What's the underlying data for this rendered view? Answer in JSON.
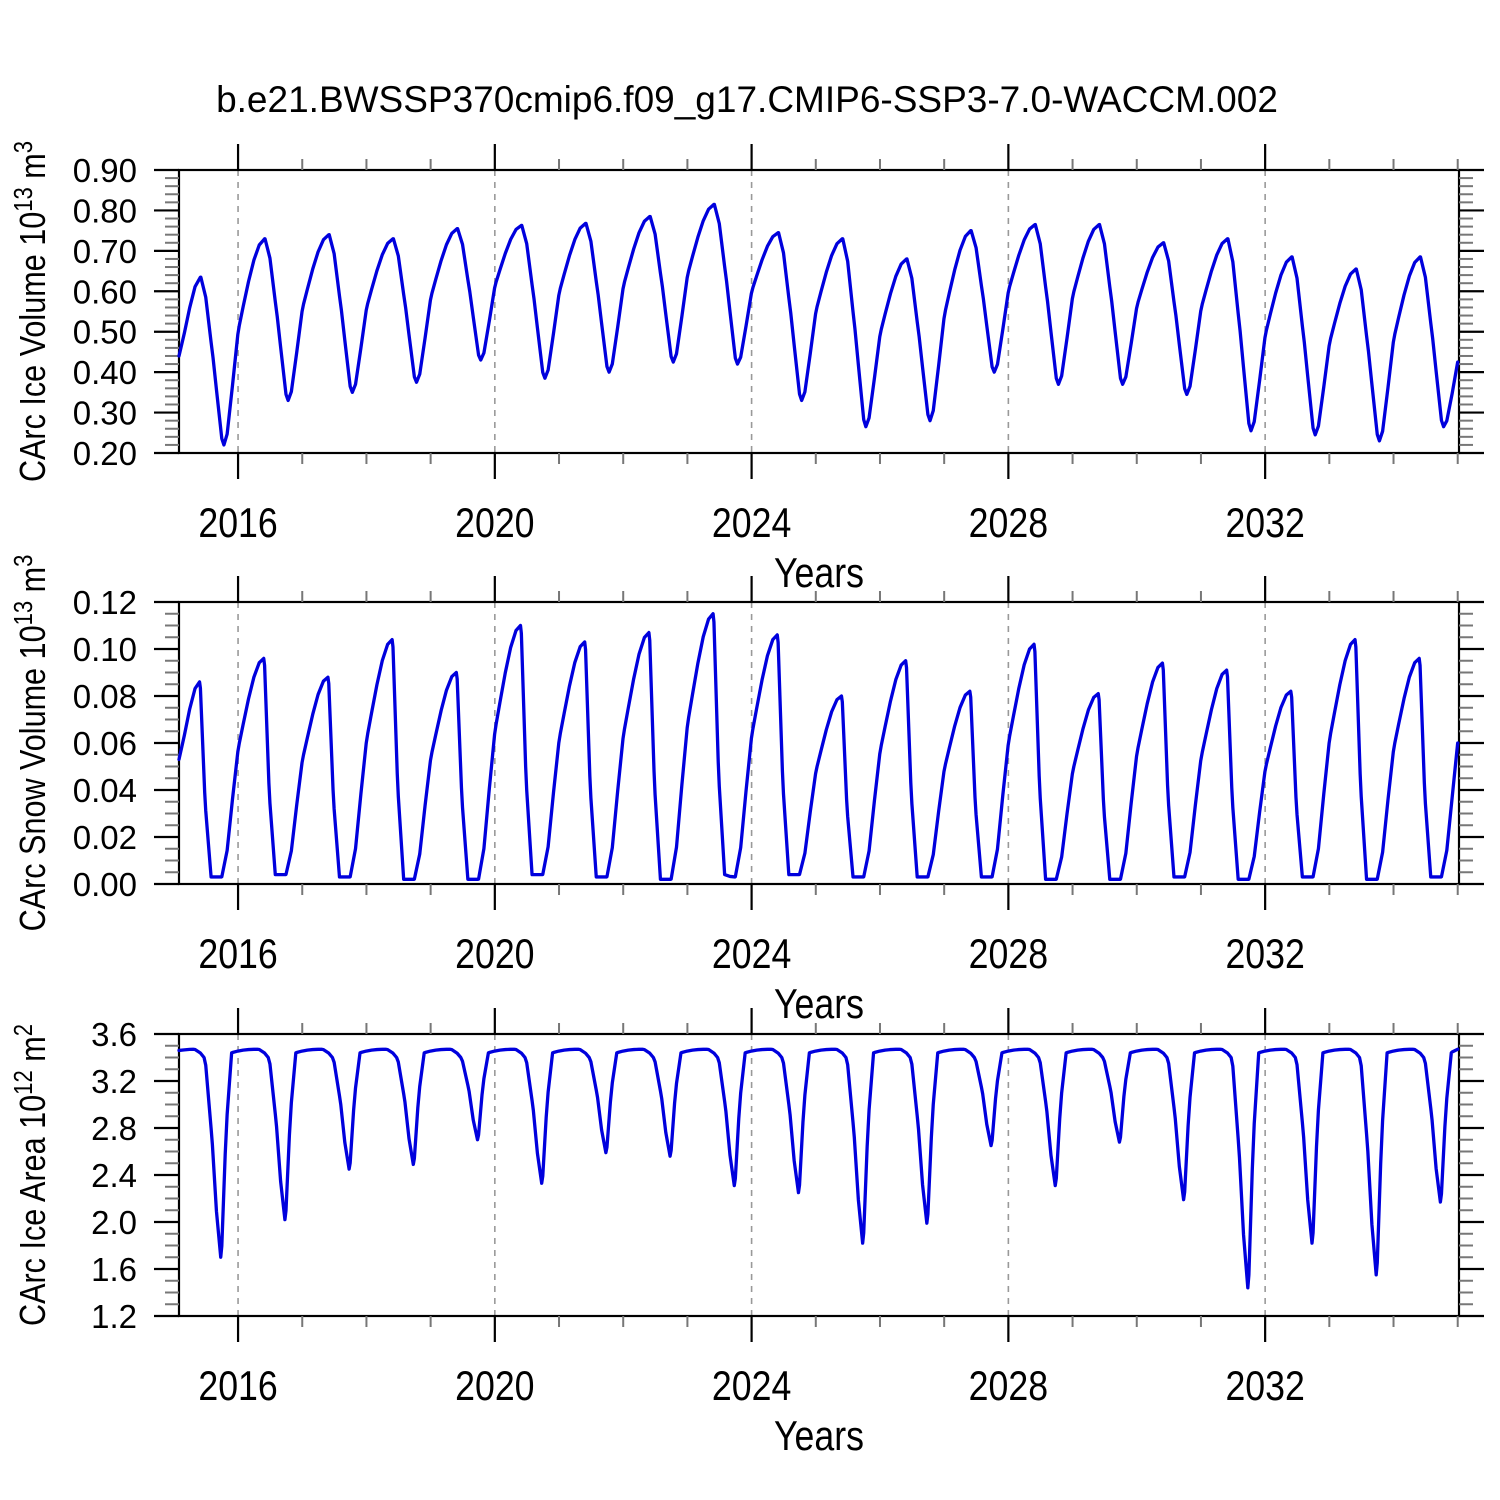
{
  "title": "b.e21.BWSSP370cmip6.f09_g17.CMIP6-SSP3-7.0-WACCM.002",
  "colors": {
    "line": "#0000dd",
    "grid": "#999999",
    "frame": "#000000",
    "major_tick": "#000000",
    "minor_tick": "#777777",
    "text": "#000000",
    "background": "#ffffff"
  },
  "chart_data": [
    {
      "type": "line",
      "name": "carc-ice-volume",
      "ylabel": "CArc Ice Volume 10^13 m^3",
      "xlabel": "Years",
      "ylim": [
        0.2,
        0.9
      ],
      "yticks": [
        0.2,
        0.3,
        0.4,
        0.5,
        0.6,
        0.7,
        0.8,
        0.9
      ],
      "ytick_labels": [
        "0.20",
        "0.30",
        "0.40",
        "0.50",
        "0.60",
        "0.70",
        "0.80",
        "0.90"
      ],
      "yminor_step": 0.02,
      "xlim": [
        2015.08,
        2035.02
      ],
      "xticks": [
        2016,
        2020,
        2024,
        2028,
        2032
      ],
      "xtick_labels": [
        "2016",
        "2020",
        "2024",
        "2028",
        "2032"
      ],
      "xminor_step": 1,
      "grid": "dashed-vertical",
      "legend": "none",
      "points": [
        [
          2015.08,
          0.44
        ],
        [
          2015.42,
          0.635
        ],
        [
          2015.61,
          0.436
        ],
        [
          2015.78,
          0.22
        ],
        [
          2016.02,
          0.516
        ],
        [
          2016.42,
          0.73
        ],
        [
          2016.61,
          0.538
        ],
        [
          2016.78,
          0.33
        ],
        [
          2017.02,
          0.568
        ],
        [
          2017.42,
          0.74
        ],
        [
          2017.61,
          0.553
        ],
        [
          2017.78,
          0.35
        ],
        [
          2018.02,
          0.57
        ],
        [
          2018.42,
          0.73
        ],
        [
          2018.61,
          0.56
        ],
        [
          2018.78,
          0.375
        ],
        [
          2019.02,
          0.595
        ],
        [
          2019.42,
          0.755
        ],
        [
          2019.61,
          0.599
        ],
        [
          2019.78,
          0.43
        ],
        [
          2020.02,
          0.623
        ],
        [
          2020.42,
          0.763
        ],
        [
          2020.61,
          0.582
        ],
        [
          2020.78,
          0.385
        ],
        [
          2021.02,
          0.607
        ],
        [
          2021.42,
          0.768
        ],
        [
          2021.61,
          0.591
        ],
        [
          2021.78,
          0.4
        ],
        [
          2022.02,
          0.623
        ],
        [
          2022.42,
          0.785
        ],
        [
          2022.61,
          0.612
        ],
        [
          2022.78,
          0.425
        ],
        [
          2023.02,
          0.651
        ],
        [
          2023.42,
          0.815
        ],
        [
          2023.61,
          0.625
        ],
        [
          2023.78,
          0.42
        ],
        [
          2024.02,
          0.609
        ],
        [
          2024.42,
          0.745
        ],
        [
          2024.61,
          0.546
        ],
        [
          2024.78,
          0.33
        ],
        [
          2025.02,
          0.562
        ],
        [
          2025.42,
          0.73
        ],
        [
          2025.61,
          0.507
        ],
        [
          2025.78,
          0.265
        ],
        [
          2026.02,
          0.506
        ],
        [
          2026.42,
          0.68
        ],
        [
          2026.61,
          0.488
        ],
        [
          2026.78,
          0.28
        ],
        [
          2027.02,
          0.553
        ],
        [
          2027.42,
          0.75
        ],
        [
          2027.61,
          0.582
        ],
        [
          2027.78,
          0.4
        ],
        [
          2028.02,
          0.612
        ],
        [
          2028.42,
          0.765
        ],
        [
          2028.61,
          0.575
        ],
        [
          2028.78,
          0.37
        ],
        [
          2029.02,
          0.599
        ],
        [
          2029.42,
          0.765
        ],
        [
          2029.61,
          0.575
        ],
        [
          2029.78,
          0.37
        ],
        [
          2030.02,
          0.573
        ],
        [
          2030.42,
          0.72
        ],
        [
          2030.61,
          0.54
        ],
        [
          2030.78,
          0.345
        ],
        [
          2031.02,
          0.568
        ],
        [
          2031.42,
          0.73
        ],
        [
          2031.61,
          0.502
        ],
        [
          2031.78,
          0.255
        ],
        [
          2032.02,
          0.504
        ],
        [
          2032.42,
          0.685
        ],
        [
          2032.61,
          0.474
        ],
        [
          2032.78,
          0.245
        ],
        [
          2033.02,
          0.483
        ],
        [
          2033.42,
          0.655
        ],
        [
          2033.61,
          0.451
        ],
        [
          2033.78,
          0.23
        ],
        [
          2034.02,
          0.494
        ],
        [
          2034.42,
          0.685
        ],
        [
          2034.61,
          0.483
        ],
        [
          2034.78,
          0.265
        ],
        [
          2035.0,
          0.425
        ]
      ]
    },
    {
      "type": "line",
      "name": "carc-snow-volume",
      "ylabel": "CArc Snow Volume 10^13 m^3",
      "xlabel": "Years",
      "ylim": [
        0.0,
        0.12
      ],
      "yticks": [
        0.0,
        0.02,
        0.04,
        0.06,
        0.08,
        0.1,
        0.12
      ],
      "ytick_labels": [
        "0.00",
        "0.02",
        "0.04",
        "0.06",
        "0.08",
        "0.10",
        "0.12"
      ],
      "yminor_step": 0.005,
      "xlim": [
        2015.08,
        2035.02
      ],
      "xticks": [
        2016,
        2020,
        2024,
        2028,
        2032
      ],
      "xtick_labels": [
        "2016",
        "2020",
        "2024",
        "2028",
        "2032"
      ],
      "xminor_step": 1,
      "grid": "dashed-vertical",
      "legend": "none",
      "points": [
        [
          2015.08,
          0.053
        ],
        [
          2015.4,
          0.086
        ],
        [
          2015.48,
          0.039
        ],
        [
          2015.58,
          0.003
        ],
        [
          2015.74,
          0.003
        ],
        [
          2016.02,
          0.06
        ],
        [
          2016.4,
          0.096
        ],
        [
          2016.48,
          0.043
        ],
        [
          2016.58,
          0.004
        ],
        [
          2016.74,
          0.004
        ],
        [
          2017.02,
          0.055
        ],
        [
          2017.4,
          0.088
        ],
        [
          2017.48,
          0.04
        ],
        [
          2017.58,
          0.003
        ],
        [
          2017.74,
          0.003
        ],
        [
          2018.02,
          0.064
        ],
        [
          2018.4,
          0.104
        ],
        [
          2018.48,
          0.047
        ],
        [
          2018.58,
          0.002
        ],
        [
          2018.74,
          0.002
        ],
        [
          2019.02,
          0.056
        ],
        [
          2019.4,
          0.09
        ],
        [
          2019.48,
          0.041
        ],
        [
          2019.58,
          0.002
        ],
        [
          2019.74,
          0.002
        ],
        [
          2020.02,
          0.068
        ],
        [
          2020.4,
          0.11
        ],
        [
          2020.48,
          0.05
        ],
        [
          2020.58,
          0.004
        ],
        [
          2020.74,
          0.004
        ],
        [
          2021.02,
          0.064
        ],
        [
          2021.4,
          0.103
        ],
        [
          2021.48,
          0.046
        ],
        [
          2021.58,
          0.003
        ],
        [
          2021.74,
          0.003
        ],
        [
          2022.02,
          0.066
        ],
        [
          2022.4,
          0.107
        ],
        [
          2022.48,
          0.048
        ],
        [
          2022.58,
          0.002
        ],
        [
          2022.74,
          0.002
        ],
        [
          2023.02,
          0.071
        ],
        [
          2023.4,
          0.115
        ],
        [
          2023.48,
          0.052
        ],
        [
          2023.58,
          0.004
        ],
        [
          2023.74,
          0.003
        ],
        [
          2024.02,
          0.066
        ],
        [
          2024.4,
          0.106
        ],
        [
          2024.48,
          0.048
        ],
        [
          2024.58,
          0.004
        ],
        [
          2024.74,
          0.004
        ],
        [
          2025.02,
          0.05
        ],
        [
          2025.4,
          0.08
        ],
        [
          2025.48,
          0.036
        ],
        [
          2025.58,
          0.003
        ],
        [
          2025.74,
          0.003
        ],
        [
          2026.02,
          0.059
        ],
        [
          2026.4,
          0.095
        ],
        [
          2026.48,
          0.043
        ],
        [
          2026.58,
          0.003
        ],
        [
          2026.74,
          0.003
        ],
        [
          2027.02,
          0.051
        ],
        [
          2027.4,
          0.082
        ],
        [
          2027.48,
          0.037
        ],
        [
          2027.58,
          0.003
        ],
        [
          2027.74,
          0.003
        ],
        [
          2028.02,
          0.063
        ],
        [
          2028.4,
          0.102
        ],
        [
          2028.48,
          0.046
        ],
        [
          2028.58,
          0.002
        ],
        [
          2028.74,
          0.002
        ],
        [
          2029.02,
          0.05
        ],
        [
          2029.4,
          0.081
        ],
        [
          2029.48,
          0.036
        ],
        [
          2029.58,
          0.002
        ],
        [
          2029.74,
          0.002
        ],
        [
          2030.02,
          0.058
        ],
        [
          2030.4,
          0.094
        ],
        [
          2030.48,
          0.042
        ],
        [
          2030.58,
          0.003
        ],
        [
          2030.74,
          0.003
        ],
        [
          2031.02,
          0.056
        ],
        [
          2031.4,
          0.091
        ],
        [
          2031.48,
          0.041
        ],
        [
          2031.58,
          0.002
        ],
        [
          2031.74,
          0.002
        ],
        [
          2032.02,
          0.051
        ],
        [
          2032.4,
          0.082
        ],
        [
          2032.48,
          0.037
        ],
        [
          2032.58,
          0.003
        ],
        [
          2032.74,
          0.003
        ],
        [
          2033.02,
          0.064
        ],
        [
          2033.4,
          0.104
        ],
        [
          2033.48,
          0.047
        ],
        [
          2033.58,
          0.002
        ],
        [
          2033.74,
          0.002
        ],
        [
          2034.02,
          0.06
        ],
        [
          2034.4,
          0.096
        ],
        [
          2034.48,
          0.043
        ],
        [
          2034.58,
          0.003
        ],
        [
          2034.74,
          0.003
        ],
        [
          2035.0,
          0.06
        ]
      ]
    },
    {
      "type": "line",
      "name": "carc-ice-area",
      "ylabel": "CArc Ice Area 10^12 m^2",
      "xlabel": "Years",
      "ylim": [
        1.2,
        3.6
      ],
      "yticks": [
        1.2,
        1.6,
        2.0,
        2.4,
        2.8,
        3.2,
        3.6
      ],
      "ytick_labels": [
        "1.2",
        "1.6",
        "2.0",
        "2.4",
        "2.8",
        "3.2",
        "3.6"
      ],
      "yminor_step": 0.1,
      "xlim": [
        2015.08,
        2035.02
      ],
      "xticks": [
        2016,
        2020,
        2024,
        2028,
        2032
      ],
      "xtick_labels": [
        "2016",
        "2020",
        "2024",
        "2028",
        "2032"
      ],
      "xminor_step": 1,
      "grid": "dashed-vertical",
      "legend": "none",
      "points": [
        [
          2015.08,
          3.46
        ],
        [
          2015.3,
          3.47
        ],
        [
          2015.47,
          3.4
        ],
        [
          2015.6,
          2.66
        ],
        [
          2015.73,
          1.7
        ],
        [
          2015.8,
          2.58
        ],
        [
          2015.9,
          3.44
        ],
        [
          2016.3,
          3.47
        ],
        [
          2016.47,
          3.4
        ],
        [
          2016.6,
          2.81
        ],
        [
          2016.73,
          2.02
        ],
        [
          2016.8,
          2.74
        ],
        [
          2016.9,
          3.44
        ],
        [
          2017.3,
          3.47
        ],
        [
          2017.47,
          3.4
        ],
        [
          2017.6,
          3.0
        ],
        [
          2017.73,
          2.45
        ],
        [
          2017.8,
          2.95
        ],
        [
          2017.9,
          3.44
        ],
        [
          2018.3,
          3.47
        ],
        [
          2018.47,
          3.4
        ],
        [
          2018.6,
          3.02
        ],
        [
          2018.73,
          2.49
        ],
        [
          2018.8,
          2.97
        ],
        [
          2018.9,
          3.44
        ],
        [
          2019.3,
          3.47
        ],
        [
          2019.47,
          3.4
        ],
        [
          2019.6,
          3.11
        ],
        [
          2019.73,
          2.7
        ],
        [
          2019.8,
          3.08
        ],
        [
          2019.9,
          3.44
        ],
        [
          2020.3,
          3.47
        ],
        [
          2020.47,
          3.4
        ],
        [
          2020.6,
          2.95
        ],
        [
          2020.73,
          2.33
        ],
        [
          2020.8,
          2.89
        ],
        [
          2020.9,
          3.44
        ],
        [
          2021.3,
          3.47
        ],
        [
          2021.47,
          3.4
        ],
        [
          2021.6,
          3.06
        ],
        [
          2021.73,
          2.59
        ],
        [
          2021.8,
          3.02
        ],
        [
          2021.9,
          3.44
        ],
        [
          2022.3,
          3.47
        ],
        [
          2022.47,
          3.4
        ],
        [
          2022.6,
          3.05
        ],
        [
          2022.73,
          2.56
        ],
        [
          2022.8,
          3.01
        ],
        [
          2022.9,
          3.44
        ],
        [
          2023.3,
          3.47
        ],
        [
          2023.47,
          3.4
        ],
        [
          2023.6,
          2.94
        ],
        [
          2023.73,
          2.31
        ],
        [
          2023.8,
          2.88
        ],
        [
          2023.9,
          3.44
        ],
        [
          2024.3,
          3.47
        ],
        [
          2024.47,
          3.4
        ],
        [
          2024.6,
          2.91
        ],
        [
          2024.73,
          2.25
        ],
        [
          2024.8,
          2.85
        ],
        [
          2024.9,
          3.44
        ],
        [
          2025.3,
          3.47
        ],
        [
          2025.47,
          3.4
        ],
        [
          2025.6,
          2.72
        ],
        [
          2025.73,
          1.82
        ],
        [
          2025.8,
          2.64
        ],
        [
          2025.9,
          3.44
        ],
        [
          2026.3,
          3.47
        ],
        [
          2026.47,
          3.4
        ],
        [
          2026.6,
          2.79
        ],
        [
          2026.73,
          1.99
        ],
        [
          2026.8,
          2.72
        ],
        [
          2026.9,
          3.44
        ],
        [
          2027.3,
          3.47
        ],
        [
          2027.47,
          3.4
        ],
        [
          2027.6,
          3.09
        ],
        [
          2027.73,
          2.65
        ],
        [
          2027.8,
          3.05
        ],
        [
          2027.9,
          3.44
        ],
        [
          2028.3,
          3.47
        ],
        [
          2028.47,
          3.4
        ],
        [
          2028.6,
          2.94
        ],
        [
          2028.73,
          2.31
        ],
        [
          2028.8,
          2.88
        ],
        [
          2028.9,
          3.44
        ],
        [
          2029.3,
          3.47
        ],
        [
          2029.47,
          3.4
        ],
        [
          2029.6,
          3.1
        ],
        [
          2029.73,
          2.68
        ],
        [
          2029.8,
          3.07
        ],
        [
          2029.9,
          3.44
        ],
        [
          2030.3,
          3.47
        ],
        [
          2030.47,
          3.4
        ],
        [
          2030.6,
          2.88
        ],
        [
          2030.73,
          2.19
        ],
        [
          2030.8,
          2.82
        ],
        [
          2030.9,
          3.44
        ],
        [
          2031.3,
          3.47
        ],
        [
          2031.47,
          3.4
        ],
        [
          2031.6,
          2.55
        ],
        [
          2031.73,
          1.44
        ],
        [
          2031.8,
          2.45
        ],
        [
          2031.9,
          3.44
        ],
        [
          2032.3,
          3.47
        ],
        [
          2032.47,
          3.4
        ],
        [
          2032.6,
          2.72
        ],
        [
          2032.73,
          1.82
        ],
        [
          2032.8,
          2.64
        ],
        [
          2032.9,
          3.44
        ],
        [
          2033.3,
          3.47
        ],
        [
          2033.47,
          3.4
        ],
        [
          2033.6,
          2.6
        ],
        [
          2033.73,
          1.55
        ],
        [
          2033.8,
          2.5
        ],
        [
          2033.9,
          3.44
        ],
        [
          2034.3,
          3.47
        ],
        [
          2034.47,
          3.4
        ],
        [
          2034.6,
          2.87
        ],
        [
          2034.73,
          2.17
        ],
        [
          2034.8,
          2.81
        ],
        [
          2034.9,
          3.44
        ],
        [
          2035.0,
          3.47
        ]
      ]
    }
  ]
}
